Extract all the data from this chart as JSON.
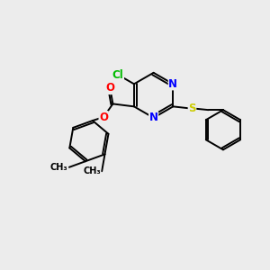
{
  "background_color": "#ececec",
  "bond_color": "#000000",
  "atom_colors": {
    "N": "#0000ff",
    "O": "#ff0000",
    "S": "#cccc00",
    "Cl": "#00bb00",
    "C": "#000000"
  },
  "font_size": 8.5,
  "line_width": 1.4,
  "figsize": [
    3.0,
    3.0
  ],
  "dpi": 100
}
